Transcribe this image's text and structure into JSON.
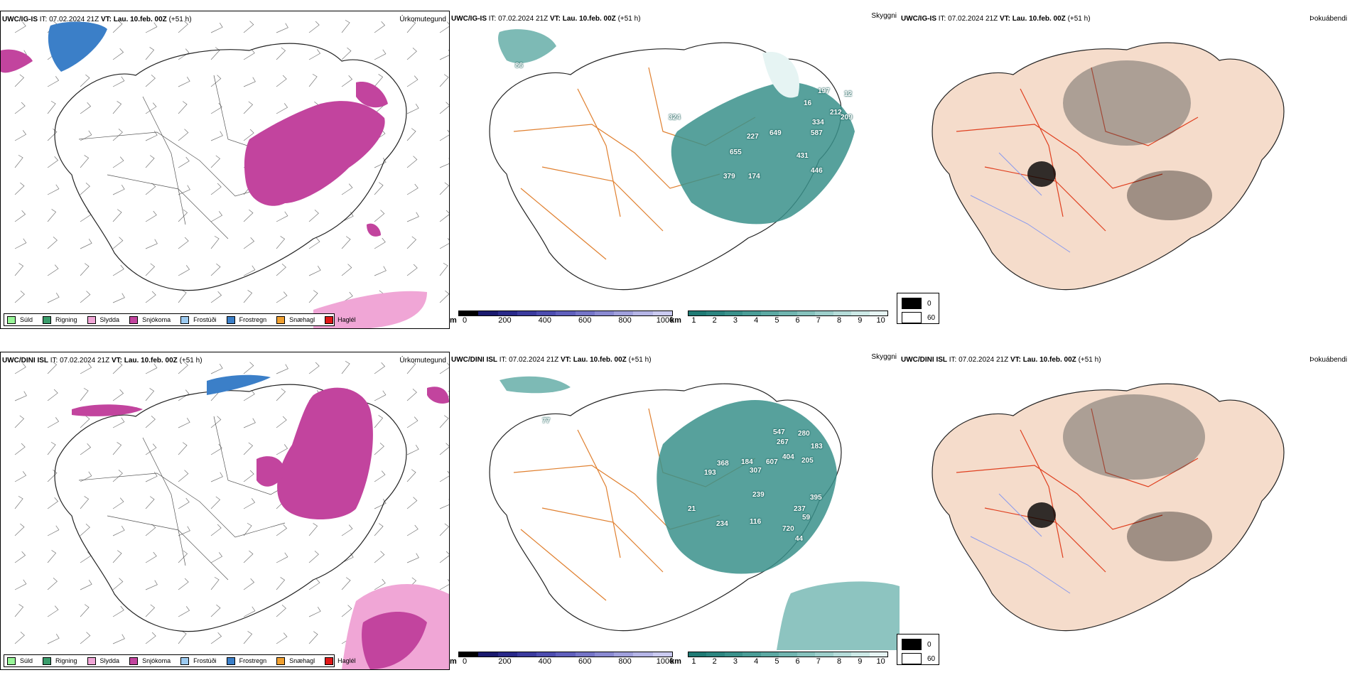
{
  "rows": [
    {
      "model": "UWC/IG-IS",
      "it": "IT: 07.02.2024 21Z",
      "vt_label": "VT:",
      "vt": "Lau. 10.feb. 00Z",
      "lead": "(+51 h)",
      "precip_title": "Úrkomutegund",
      "cloud_title": "Skyggni",
      "fog_title": "Þokuábendi",
      "vis_labels": [
        "86",
        "324",
        "227",
        "655",
        "379",
        "174",
        "649",
        "431",
        "446",
        "197",
        "212",
        "334",
        "587",
        "209",
        "12",
        "16"
      ]
    },
    {
      "model": "UWC/DINI ISL",
      "it": "IT: 07.02.2024 21Z",
      "vt_label": "VT:",
      "vt": "Lau. 10.feb. 00Z",
      "lead": "(+51 h)",
      "precip_title": "Úrkomutegund",
      "cloud_title": "Skyggni",
      "fog_title": "Þokuábendi",
      "vis_labels": [
        "77",
        "547",
        "267",
        "280",
        "183",
        "404",
        "607",
        "368",
        "193",
        "184",
        "307",
        "205",
        "239",
        "395",
        "237",
        "59",
        "21",
        "234",
        "116",
        "720",
        "44"
      ]
    }
  ],
  "precip_legend": [
    {
      "label": "Súld",
      "color": "#98f598"
    },
    {
      "label": "Rigning",
      "color": "#3a9c6b"
    },
    {
      "label": "Slydda",
      "color": "#f0a6d6"
    },
    {
      "label": "Snjókoma",
      "color": "#c2449e"
    },
    {
      "label": "Frostúði",
      "color": "#9ccaf0"
    },
    {
      "label": "Frostregn",
      "color": "#3b7fc8"
    },
    {
      "label": "Snæhagl",
      "color": "#f0a030"
    },
    {
      "label": "Haglél",
      "color": "#e01818"
    }
  ],
  "height_bar": {
    "unit": "m",
    "ticks": [
      "0",
      "200",
      "400",
      "600",
      "800",
      "1000"
    ],
    "colors": [
      "#000000",
      "#1a1a6e",
      "#2a2a8a",
      "#3b3b9e",
      "#4d4db0",
      "#6060bd",
      "#7575c8",
      "#8a8ad2",
      "#a0a0dc",
      "#b5b5e6",
      "#cacaf0"
    ]
  },
  "vis_bar": {
    "unit": "km",
    "ticks": [
      "1",
      "2",
      "3",
      "4",
      "5",
      "6",
      "7",
      "8",
      "9",
      "10"
    ],
    "colors": [
      "#1f7a74",
      "#2c8580",
      "#3a918b",
      "#4a9d97",
      "#5ca9a3",
      "#70b5b0",
      "#86c2bd",
      "#9dcfcb",
      "#b5dcd9",
      "#cce9e6",
      "#e6f4f3"
    ]
  },
  "fog_legend": [
    {
      "label": "0",
      "color": "#000000"
    },
    {
      "label": "60",
      "color": "#ffffff"
    }
  ]
}
